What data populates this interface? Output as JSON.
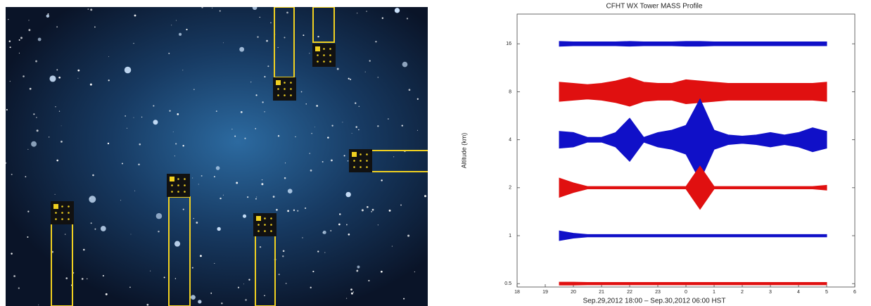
{
  "chart_data": {
    "type": "envelope",
    "title": "CFHT WX Tower MASS Profile",
    "x_label": "Sep.29,2012 18:00 – Sep.30,2012 06:00 HST",
    "y_label": "Altitude (km)",
    "xlim": [
      0,
      12
    ],
    "xticks": [
      {
        "value": 0,
        "label": "18"
      },
      {
        "value": 1,
        "label": "19"
      },
      {
        "value": 2,
        "label": "20"
      },
      {
        "value": 3,
        "label": "21"
      },
      {
        "value": 4,
        "label": "22"
      },
      {
        "value": 5,
        "label": "23"
      },
      {
        "value": 6,
        "label": "0"
      },
      {
        "value": 7,
        "label": "1"
      },
      {
        "value": 8,
        "label": "2"
      },
      {
        "value": 9,
        "label": "3"
      },
      {
        "value": 10,
        "label": "4"
      },
      {
        "value": 11,
        "label": "5"
      },
      {
        "value": 12,
        "label": "6"
      }
    ],
    "ylim": [
      -0.07,
      5.62
    ],
    "yticks": [
      {
        "value": 0,
        "label": "0.5"
      },
      {
        "value": 1,
        "label": "1"
      },
      {
        "value": 2,
        "label": "2"
      },
      {
        "value": 3,
        "label": "4"
      },
      {
        "value": 4,
        "label": "8"
      },
      {
        "value": 5,
        "label": "16"
      }
    ],
    "y2lim": [
      0,
      1
    ],
    "x": [
      1.5,
      2,
      2.5,
      3,
      3.5,
      4,
      4.5,
      5,
      5.5,
      6,
      6.5,
      7,
      7.5,
      8,
      8.5,
      9,
      9.5,
      10,
      10.5,
      11
    ],
    "series": [
      {
        "y": 5,
        "color": "#1010c8",
        "axis": "y2",
        "values": [
          0.1,
          0.08,
          0.08,
          0.08,
          0.08,
          0.1,
          0.08,
          0.08,
          0.08,
          0.1,
          0.1,
          0.08,
          0.08,
          0.08,
          0.08,
          0.08,
          0.08,
          0.08,
          0.08,
          0.08
        ]
      },
      {
        "y": 4,
        "color": "#e01010",
        "axis": "y2",
        "values": [
          0.4,
          0.35,
          0.3,
          0.35,
          0.45,
          0.6,
          0.4,
          0.35,
          0.35,
          0.5,
          0.45,
          0.4,
          0.35,
          0.35,
          0.35,
          0.35,
          0.35,
          0.35,
          0.35,
          0.4
        ]
      },
      {
        "y": 3,
        "color": "#1010c8",
        "axis": "y2",
        "values": [
          0.35,
          0.3,
          0.1,
          0.1,
          0.3,
          0.9,
          0.1,
          0.3,
          0.4,
          0.6,
          1.7,
          0.4,
          0.2,
          0.15,
          0.2,
          0.3,
          0.2,
          0.3,
          0.5,
          0.35
        ]
      },
      {
        "y": 2,
        "color": "#e01010",
        "axis": "y2",
        "values": [
          0.4,
          0.2,
          0.05,
          0.05,
          0.05,
          0.05,
          0.05,
          0.05,
          0.05,
          0.05,
          0.9,
          0.05,
          0.05,
          0.05,
          0.05,
          0.05,
          0.05,
          0.05,
          0.05,
          0.1
        ]
      },
      {
        "y": 1,
        "color": "#1010c8",
        "axis": "y2",
        "values": [
          0.2,
          0.1,
          0.05,
          0.05,
          0.05,
          0.05,
          0.05,
          0.05,
          0.05,
          0.05,
          0.05,
          0.05,
          0.05,
          0.05,
          0.05,
          0.05,
          0.05,
          0.05,
          0.05,
          0.05
        ]
      },
      {
        "y": 0,
        "color": "#e01010",
        "axis": "y2",
        "values": [
          0.06,
          0.06,
          0.05,
          0.05,
          0.05,
          0.05,
          0.05,
          0.05,
          0.05,
          0.05,
          0.05,
          0.05,
          0.05,
          0.05,
          0.05,
          0.05,
          0.05,
          0.05,
          0.05,
          0.05
        ]
      }
    ]
  }
}
